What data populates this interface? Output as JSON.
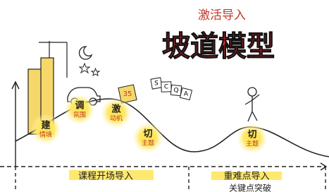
{
  "header": {
    "subtitle": "激活导入",
    "title": "坡道模型"
  },
  "nodes": [
    {
      "char": "建",
      "label": "情境"
    },
    {
      "char": "调",
      "label": "氛围"
    },
    {
      "char": "激",
      "label": "动机"
    },
    {
      "char": "切",
      "label": "主题"
    },
    {
      "char": "切",
      "label": "主题"
    }
  ],
  "cards": [
    "S",
    "C",
    "Q",
    "A"
  ],
  "sign": "35",
  "sections": [
    {
      "label": "课程开场导入"
    },
    {
      "label": "重难点导入",
      "sublabel": "关键点突破"
    }
  ]
}
